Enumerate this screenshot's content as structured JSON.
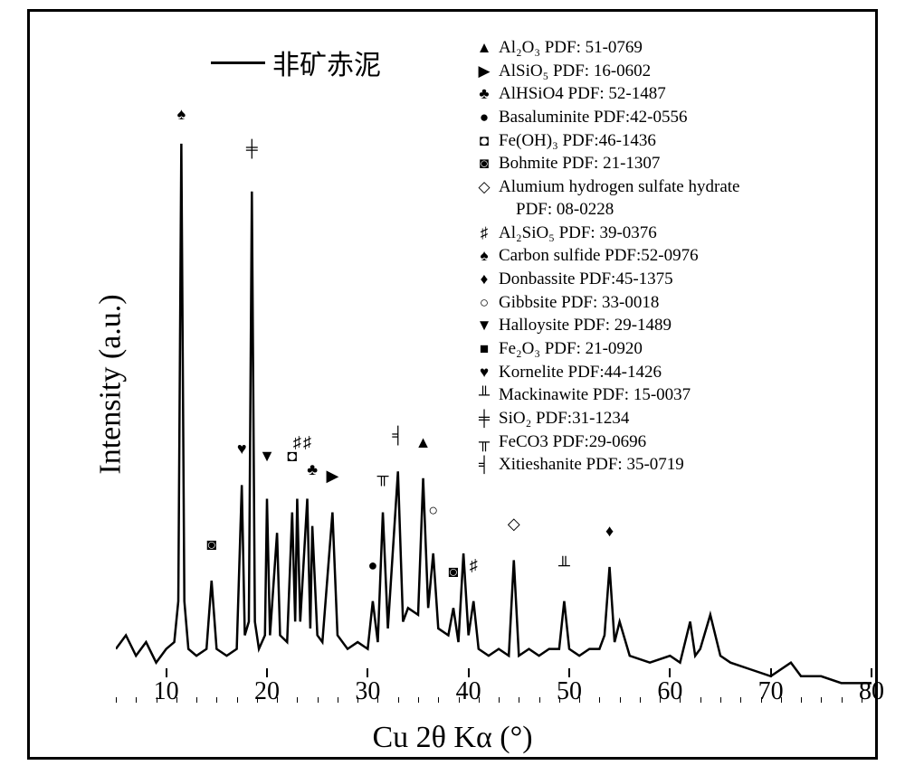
{
  "chart": {
    "type": "line",
    "title_legend": "非矿赤泥",
    "xlabel": "Cu 2θ Kα (°)",
    "ylabel": "Intensity (a.u.)",
    "xlim": [
      5,
      80
    ],
    "ylim": [
      0,
      100
    ],
    "xticks": [
      10,
      20,
      30,
      40,
      50,
      60,
      70,
      80
    ],
    "xtick_labels": [
      "10",
      "20",
      "30",
      "40",
      "50",
      "60",
      "70",
      "80"
    ],
    "x_minor_step": 2,
    "background_color": "#ffffff",
    "border_color": "#000000",
    "line_color": "#000000",
    "line_width": 2,
    "label_fontsize": 34,
    "tick_fontsize": 28,
    "legend_fontsize": 30,
    "peak_legend_fontsize": 19,
    "phases": [
      {
        "symbol": "▲",
        "name": "Al₂O₃",
        "pdf": "PDF: 51-0769"
      },
      {
        "symbol": "▶",
        "name": "AlSiO₅",
        "pdf": "PDF: 16-0602"
      },
      {
        "symbol": "♣",
        "name": "AlHSiO4",
        "pdf": "PDF: 52-1487"
      },
      {
        "symbol": "●",
        "name": "Basaluminite",
        "pdf": "PDF:42-0556"
      },
      {
        "symbol": "◘",
        "name": "Fe(OH)₃",
        "pdf": "PDF:46-1436"
      },
      {
        "symbol": "◙",
        "name": "Bohmite",
        "pdf": "PDF: 21-1307"
      },
      {
        "symbol": "◇",
        "name": "Alumium hydrogen sulfate hydrate",
        "pdf": "PDF: 08-0228"
      },
      {
        "symbol": "♯",
        "name": "Al₂SiO₅",
        "pdf": "PDF: 39-0376"
      },
      {
        "symbol": "♠",
        "name": "Carbon sulfide",
        "pdf": "PDF:52-0976"
      },
      {
        "symbol": "♦",
        "name": "Donbassite",
        "pdf": "PDF:45-1375"
      },
      {
        "symbol": "○",
        "name": "Gibbsite",
        "pdf": "PDF: 33-0018"
      },
      {
        "symbol": "▼",
        "name": "Halloysite",
        "pdf": "PDF: 29-1489"
      },
      {
        "symbol": "■",
        "name": "Fe₂O₃",
        "pdf": "PDF: 21-0920"
      },
      {
        "symbol": "♥",
        "name": "Kornelite",
        "pdf": "PDF:44-1426"
      },
      {
        "symbol": "╨",
        "name": "Mackinawite",
        "pdf": "PDF: 15-0037"
      },
      {
        "symbol": "╪",
        "name": "SiO₂",
        "pdf": "PDF:31-1234"
      },
      {
        "symbol": "╥",
        "name": "FeCO3",
        "pdf": "PDF:29-0696"
      },
      {
        "symbol": "╡",
        "name": "Xitieshanite",
        "pdf": "PDF: 35-0719"
      }
    ],
    "peak_markers": [
      {
        "x": 11.5,
        "y": 85,
        "symbol": "♠"
      },
      {
        "x": 14.5,
        "y": 22,
        "symbol": "◙"
      },
      {
        "x": 17.5,
        "y": 36,
        "symbol": "♥"
      },
      {
        "x": 18.5,
        "y": 80,
        "symbol": "╪"
      },
      {
        "x": 20.0,
        "y": 35,
        "symbol": "▼"
      },
      {
        "x": 22.5,
        "y": 35,
        "symbol": "◘"
      },
      {
        "x": 23.0,
        "y": 37,
        "symbol": "♯"
      },
      {
        "x": 24.0,
        "y": 37,
        "symbol": "♯"
      },
      {
        "x": 24.5,
        "y": 33,
        "symbol": "♣"
      },
      {
        "x": 26.5,
        "y": 32,
        "symbol": "▶"
      },
      {
        "x": 30.5,
        "y": 19,
        "symbol": "●"
      },
      {
        "x": 31.5,
        "y": 32,
        "symbol": "╥"
      },
      {
        "x": 33.0,
        "y": 38,
        "symbol": "╡"
      },
      {
        "x": 35.5,
        "y": 37,
        "symbol": "▲"
      },
      {
        "x": 36.5,
        "y": 27,
        "symbol": "○"
      },
      {
        "x": 38.5,
        "y": 18,
        "symbol": "◙"
      },
      {
        "x": 40.5,
        "y": 19,
        "symbol": "♯"
      },
      {
        "x": 44.5,
        "y": 25,
        "symbol": "◇"
      },
      {
        "x": 49.5,
        "y": 19,
        "symbol": "╨"
      },
      {
        "x": 54.0,
        "y": 24,
        "symbol": "♦"
      }
    ],
    "data": [
      {
        "x": 5,
        "y": 8
      },
      {
        "x": 6,
        "y": 10
      },
      {
        "x": 7,
        "y": 7
      },
      {
        "x": 8,
        "y": 9
      },
      {
        "x": 9,
        "y": 6
      },
      {
        "x": 10,
        "y": 8
      },
      {
        "x": 10.8,
        "y": 9
      },
      {
        "x": 11.2,
        "y": 15
      },
      {
        "x": 11.5,
        "y": 82
      },
      {
        "x": 11.8,
        "y": 15
      },
      {
        "x": 12.2,
        "y": 8
      },
      {
        "x": 13,
        "y": 7
      },
      {
        "x": 14,
        "y": 8
      },
      {
        "x": 14.5,
        "y": 18
      },
      {
        "x": 15,
        "y": 8
      },
      {
        "x": 16,
        "y": 7
      },
      {
        "x": 17,
        "y": 8
      },
      {
        "x": 17.5,
        "y": 32
      },
      {
        "x": 17.8,
        "y": 10
      },
      {
        "x": 18.2,
        "y": 12
      },
      {
        "x": 18.5,
        "y": 75
      },
      {
        "x": 18.8,
        "y": 12
      },
      {
        "x": 19.2,
        "y": 8
      },
      {
        "x": 19.8,
        "y": 10
      },
      {
        "x": 20.0,
        "y": 30
      },
      {
        "x": 20.3,
        "y": 10
      },
      {
        "x": 21,
        "y": 25
      },
      {
        "x": 21.3,
        "y": 10
      },
      {
        "x": 22,
        "y": 9
      },
      {
        "x": 22.5,
        "y": 28
      },
      {
        "x": 22.8,
        "y": 12
      },
      {
        "x": 23.0,
        "y": 30
      },
      {
        "x": 23.3,
        "y": 12
      },
      {
        "x": 24.0,
        "y": 30
      },
      {
        "x": 24.3,
        "y": 11
      },
      {
        "x": 24.5,
        "y": 26
      },
      {
        "x": 25,
        "y": 10
      },
      {
        "x": 25.5,
        "y": 9
      },
      {
        "x": 26.5,
        "y": 28
      },
      {
        "x": 27,
        "y": 10
      },
      {
        "x": 28,
        "y": 8
      },
      {
        "x": 29,
        "y": 9
      },
      {
        "x": 30,
        "y": 8
      },
      {
        "x": 30.5,
        "y": 15
      },
      {
        "x": 31,
        "y": 9
      },
      {
        "x": 31.5,
        "y": 28
      },
      {
        "x": 32,
        "y": 11
      },
      {
        "x": 33,
        "y": 34
      },
      {
        "x": 33.5,
        "y": 12
      },
      {
        "x": 34,
        "y": 14
      },
      {
        "x": 35,
        "y": 13
      },
      {
        "x": 35.5,
        "y": 33
      },
      {
        "x": 36,
        "y": 14
      },
      {
        "x": 36.5,
        "y": 22
      },
      {
        "x": 37,
        "y": 11
      },
      {
        "x": 38,
        "y": 10
      },
      {
        "x": 38.5,
        "y": 14
      },
      {
        "x": 39,
        "y": 9
      },
      {
        "x": 39.5,
        "y": 22
      },
      {
        "x": 40,
        "y": 10
      },
      {
        "x": 40.5,
        "y": 15
      },
      {
        "x": 41,
        "y": 8
      },
      {
        "x": 42,
        "y": 7
      },
      {
        "x": 43,
        "y": 8
      },
      {
        "x": 44,
        "y": 7
      },
      {
        "x": 44.5,
        "y": 21
      },
      {
        "x": 45,
        "y": 7
      },
      {
        "x": 46,
        "y": 8
      },
      {
        "x": 47,
        "y": 7
      },
      {
        "x": 48,
        "y": 8
      },
      {
        "x": 49,
        "y": 8
      },
      {
        "x": 49.5,
        "y": 15
      },
      {
        "x": 50,
        "y": 8
      },
      {
        "x": 51,
        "y": 7
      },
      {
        "x": 52,
        "y": 8
      },
      {
        "x": 53,
        "y": 8
      },
      {
        "x": 53.5,
        "y": 10
      },
      {
        "x": 54.0,
        "y": 20
      },
      {
        "x": 54.5,
        "y": 9
      },
      {
        "x": 55,
        "y": 12
      },
      {
        "x": 56,
        "y": 7
      },
      {
        "x": 58,
        "y": 6
      },
      {
        "x": 60,
        "y": 7
      },
      {
        "x": 61,
        "y": 6
      },
      {
        "x": 62,
        "y": 12
      },
      {
        "x": 62.5,
        "y": 7
      },
      {
        "x": 63,
        "y": 8
      },
      {
        "x": 64,
        "y": 13
      },
      {
        "x": 65,
        "y": 7
      },
      {
        "x": 66,
        "y": 6
      },
      {
        "x": 68,
        "y": 5
      },
      {
        "x": 70,
        "y": 4
      },
      {
        "x": 72,
        "y": 6
      },
      {
        "x": 73,
        "y": 4
      },
      {
        "x": 75,
        "y": 4
      },
      {
        "x": 77,
        "y": 3
      },
      {
        "x": 80,
        "y": 3
      }
    ]
  }
}
